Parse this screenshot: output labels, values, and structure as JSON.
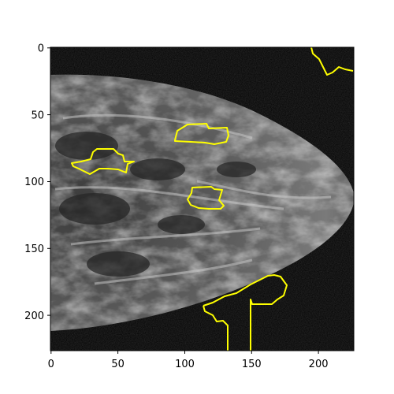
{
  "image": {
    "subject": "mammogram",
    "x_ticks": [
      "0",
      "50",
      "100",
      "150",
      "200"
    ],
    "y_ticks": [
      "0",
      "50",
      "100",
      "150",
      "200"
    ],
    "x_range": [
      0,
      227
    ],
    "y_range": [
      0,
      227
    ],
    "contour_color": "#ffff00",
    "frame_color": "#000000",
    "background_color": "#0a0a0a"
  }
}
